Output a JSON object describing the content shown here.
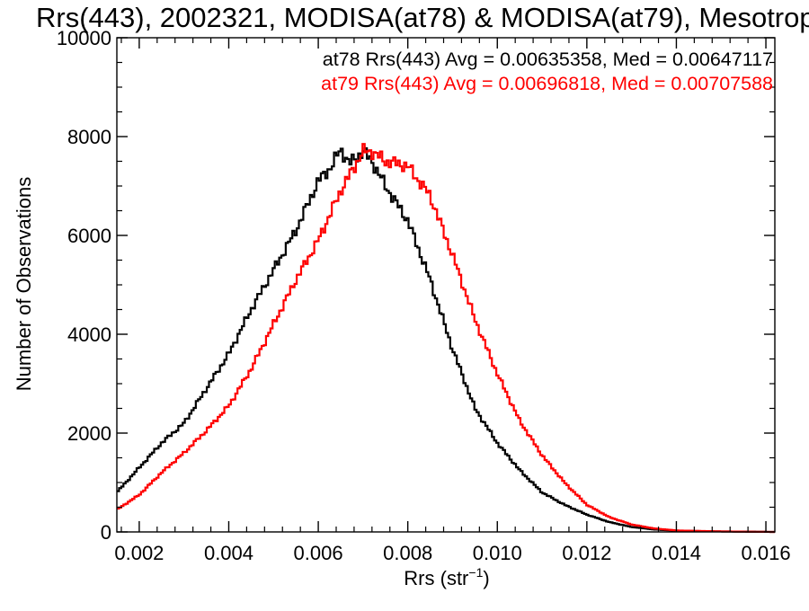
{
  "chart_data": {
    "type": "line",
    "title": "Rrs(443), 2002321, MODISA(at78) & MODISA(at79), Mesotrop",
    "xlabel": "Rrs (str",
    "xlabel_sup": "−1",
    "xlabel_close": ")",
    "ylabel": "Number of Observations",
    "xlim": [
      0.0015,
      0.0162
    ],
    "ylim": [
      0,
      10000
    ],
    "x_ticks": [
      0.002,
      0.004,
      0.006,
      0.008,
      0.01,
      0.012,
      0.014,
      0.016
    ],
    "x_tick_labels": [
      "0.002",
      "0.004",
      "0.006",
      "0.008",
      "0.010",
      "0.012",
      "0.014",
      "0.016"
    ],
    "y_ticks": [
      0,
      2000,
      4000,
      6000,
      8000,
      10000
    ],
    "y_tick_labels": [
      "0",
      "2000",
      "4000",
      "6000",
      "8000",
      "10000"
    ],
    "annotations": [
      {
        "text": "at78 Rrs(443) Avg = 0.00635358, Med = 0.00647117",
        "color": "#000000"
      },
      {
        "text": "at79 Rrs(443) Avg = 0.00696818, Med = 0.00707588",
        "color": "#ff0000"
      }
    ],
    "series": [
      {
        "color": "#000000",
        "x": [
          0.0015,
          0.002,
          0.0025,
          0.003,
          0.0035,
          0.004,
          0.0045,
          0.005,
          0.0055,
          0.006,
          0.0063,
          0.0065,
          0.0067,
          0.007,
          0.0072,
          0.0075,
          0.008,
          0.0085,
          0.009,
          0.0095,
          0.01,
          0.0105,
          0.011,
          0.0115,
          0.012,
          0.0125,
          0.013,
          0.0135,
          0.014,
          0.015,
          0.0162
        ],
        "y": [
          800,
          1300,
          1800,
          2200,
          2900,
          3600,
          4500,
          5300,
          6100,
          7100,
          7400,
          7750,
          7450,
          7700,
          7500,
          7000,
          6300,
          5100,
          3700,
          2500,
          1800,
          1250,
          800,
          550,
          350,
          200,
          100,
          50,
          25,
          10,
          0
        ]
      },
      {
        "color": "#ff0000",
        "x": [
          0.0015,
          0.002,
          0.0025,
          0.003,
          0.0035,
          0.004,
          0.0045,
          0.005,
          0.0055,
          0.006,
          0.0065,
          0.007,
          0.0072,
          0.0075,
          0.0078,
          0.008,
          0.0085,
          0.009,
          0.0095,
          0.01,
          0.0105,
          0.011,
          0.0115,
          0.012,
          0.0125,
          0.013,
          0.0135,
          0.014,
          0.015,
          0.0162
        ],
        "y": [
          450,
          750,
          1200,
          1600,
          2050,
          2550,
          3300,
          4200,
          5100,
          5900,
          6900,
          7700,
          7700,
          7500,
          7450,
          7400,
          6800,
          5600,
          4300,
          3200,
          2250,
          1550,
          1000,
          550,
          300,
          150,
          70,
          30,
          10,
          0
        ]
      }
    ],
    "grid": false,
    "legend": "none"
  }
}
